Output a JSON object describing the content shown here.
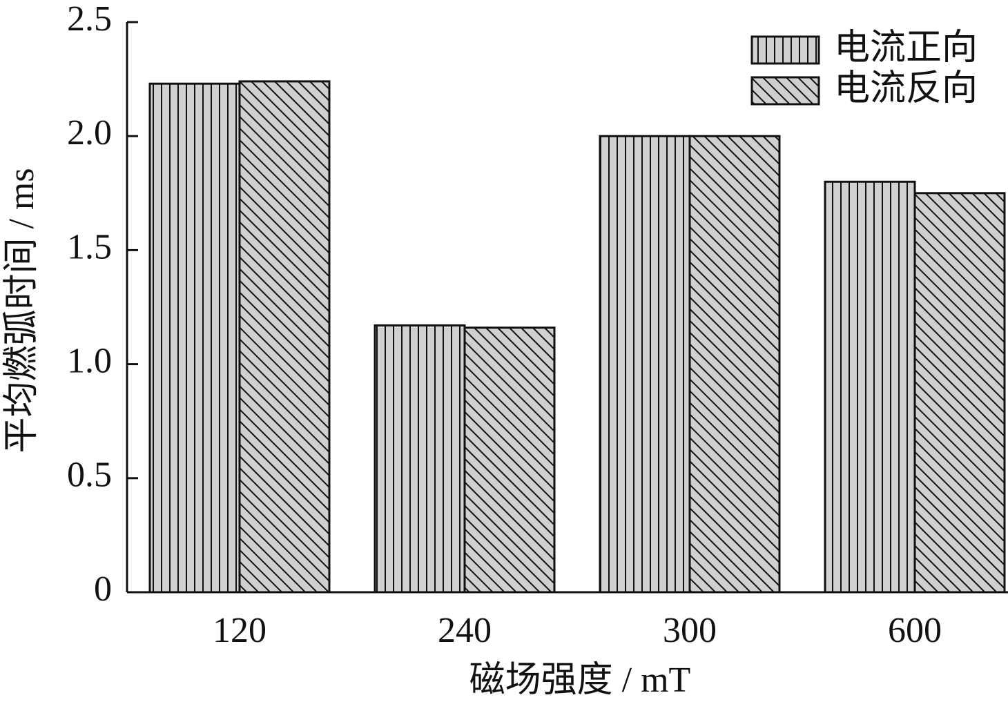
{
  "chart_data": {
    "type": "bar",
    "x_label": "磁场强度 / mT",
    "y_label": "平均燃弧时间 / ms",
    "categories": [
      "120",
      "240",
      "300",
      "600"
    ],
    "series": [
      {
        "name": "电流正向",
        "color": "#d0d0d0",
        "hatch": "vertical",
        "values": [
          2.23,
          1.17,
          2.0,
          1.8
        ]
      },
      {
        "name": "电流反向",
        "color": "#d0d0d0",
        "hatch": "diagonal",
        "values": [
          2.24,
          1.16,
          2.0,
          1.75
        ]
      }
    ],
    "ylim": [
      0,
      2.5
    ],
    "yticks": [
      0,
      {
        "value": 0.5,
        "label": "0.5"
      },
      {
        "value": 1,
        "label": "1.0"
      },
      {
        "value": 1.5,
        "label": "1.5"
      },
      {
        "value": 2,
        "label": "2.0"
      },
      {
        "value": 2.5,
        "label": "2.5"
      }
    ],
    "grid": false,
    "legend": "upper right"
  }
}
